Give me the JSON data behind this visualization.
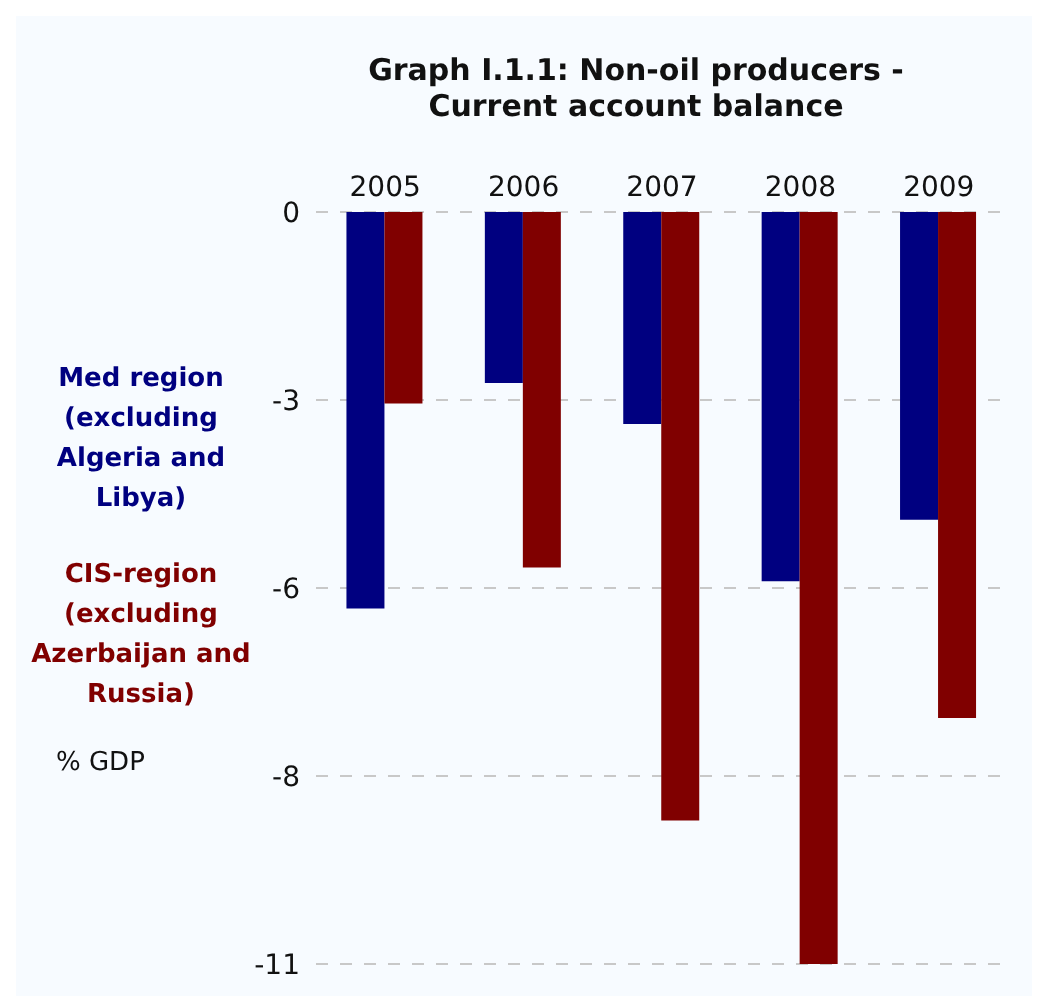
{
  "chart_data": {
    "type": "bar",
    "title": "Graph I.1.1: Non-oil producers - Current account balance",
    "ylabel": "% GDP",
    "categories": [
      "2005",
      "2006",
      "2007",
      "2008",
      "2009"
    ],
    "series": [
      {
        "name": "Med region (excluding Algeria and Libya)",
        "color": "#000080",
        "values": [
          -5.8,
          -2.5,
          -3.1,
          -5.4,
          -4.5
        ]
      },
      {
        "name": "CIS-region (excluding Azerbaijan and Russia)",
        "color": "#800000",
        "values": [
          -2.8,
          -5.2,
          -8.9,
          -11,
          -7.4
        ]
      }
    ],
    "ylim": [
      -11,
      0
    ],
    "yticks": [
      0,
      {
        "value": -2.75,
        "label": "-3"
      },
      {
        "value": -5.5,
        "label": "-6"
      },
      {
        "value": -8.25,
        "label": "-8"
      },
      -11
    ],
    "grid": "y",
    "legend": "left"
  }
}
